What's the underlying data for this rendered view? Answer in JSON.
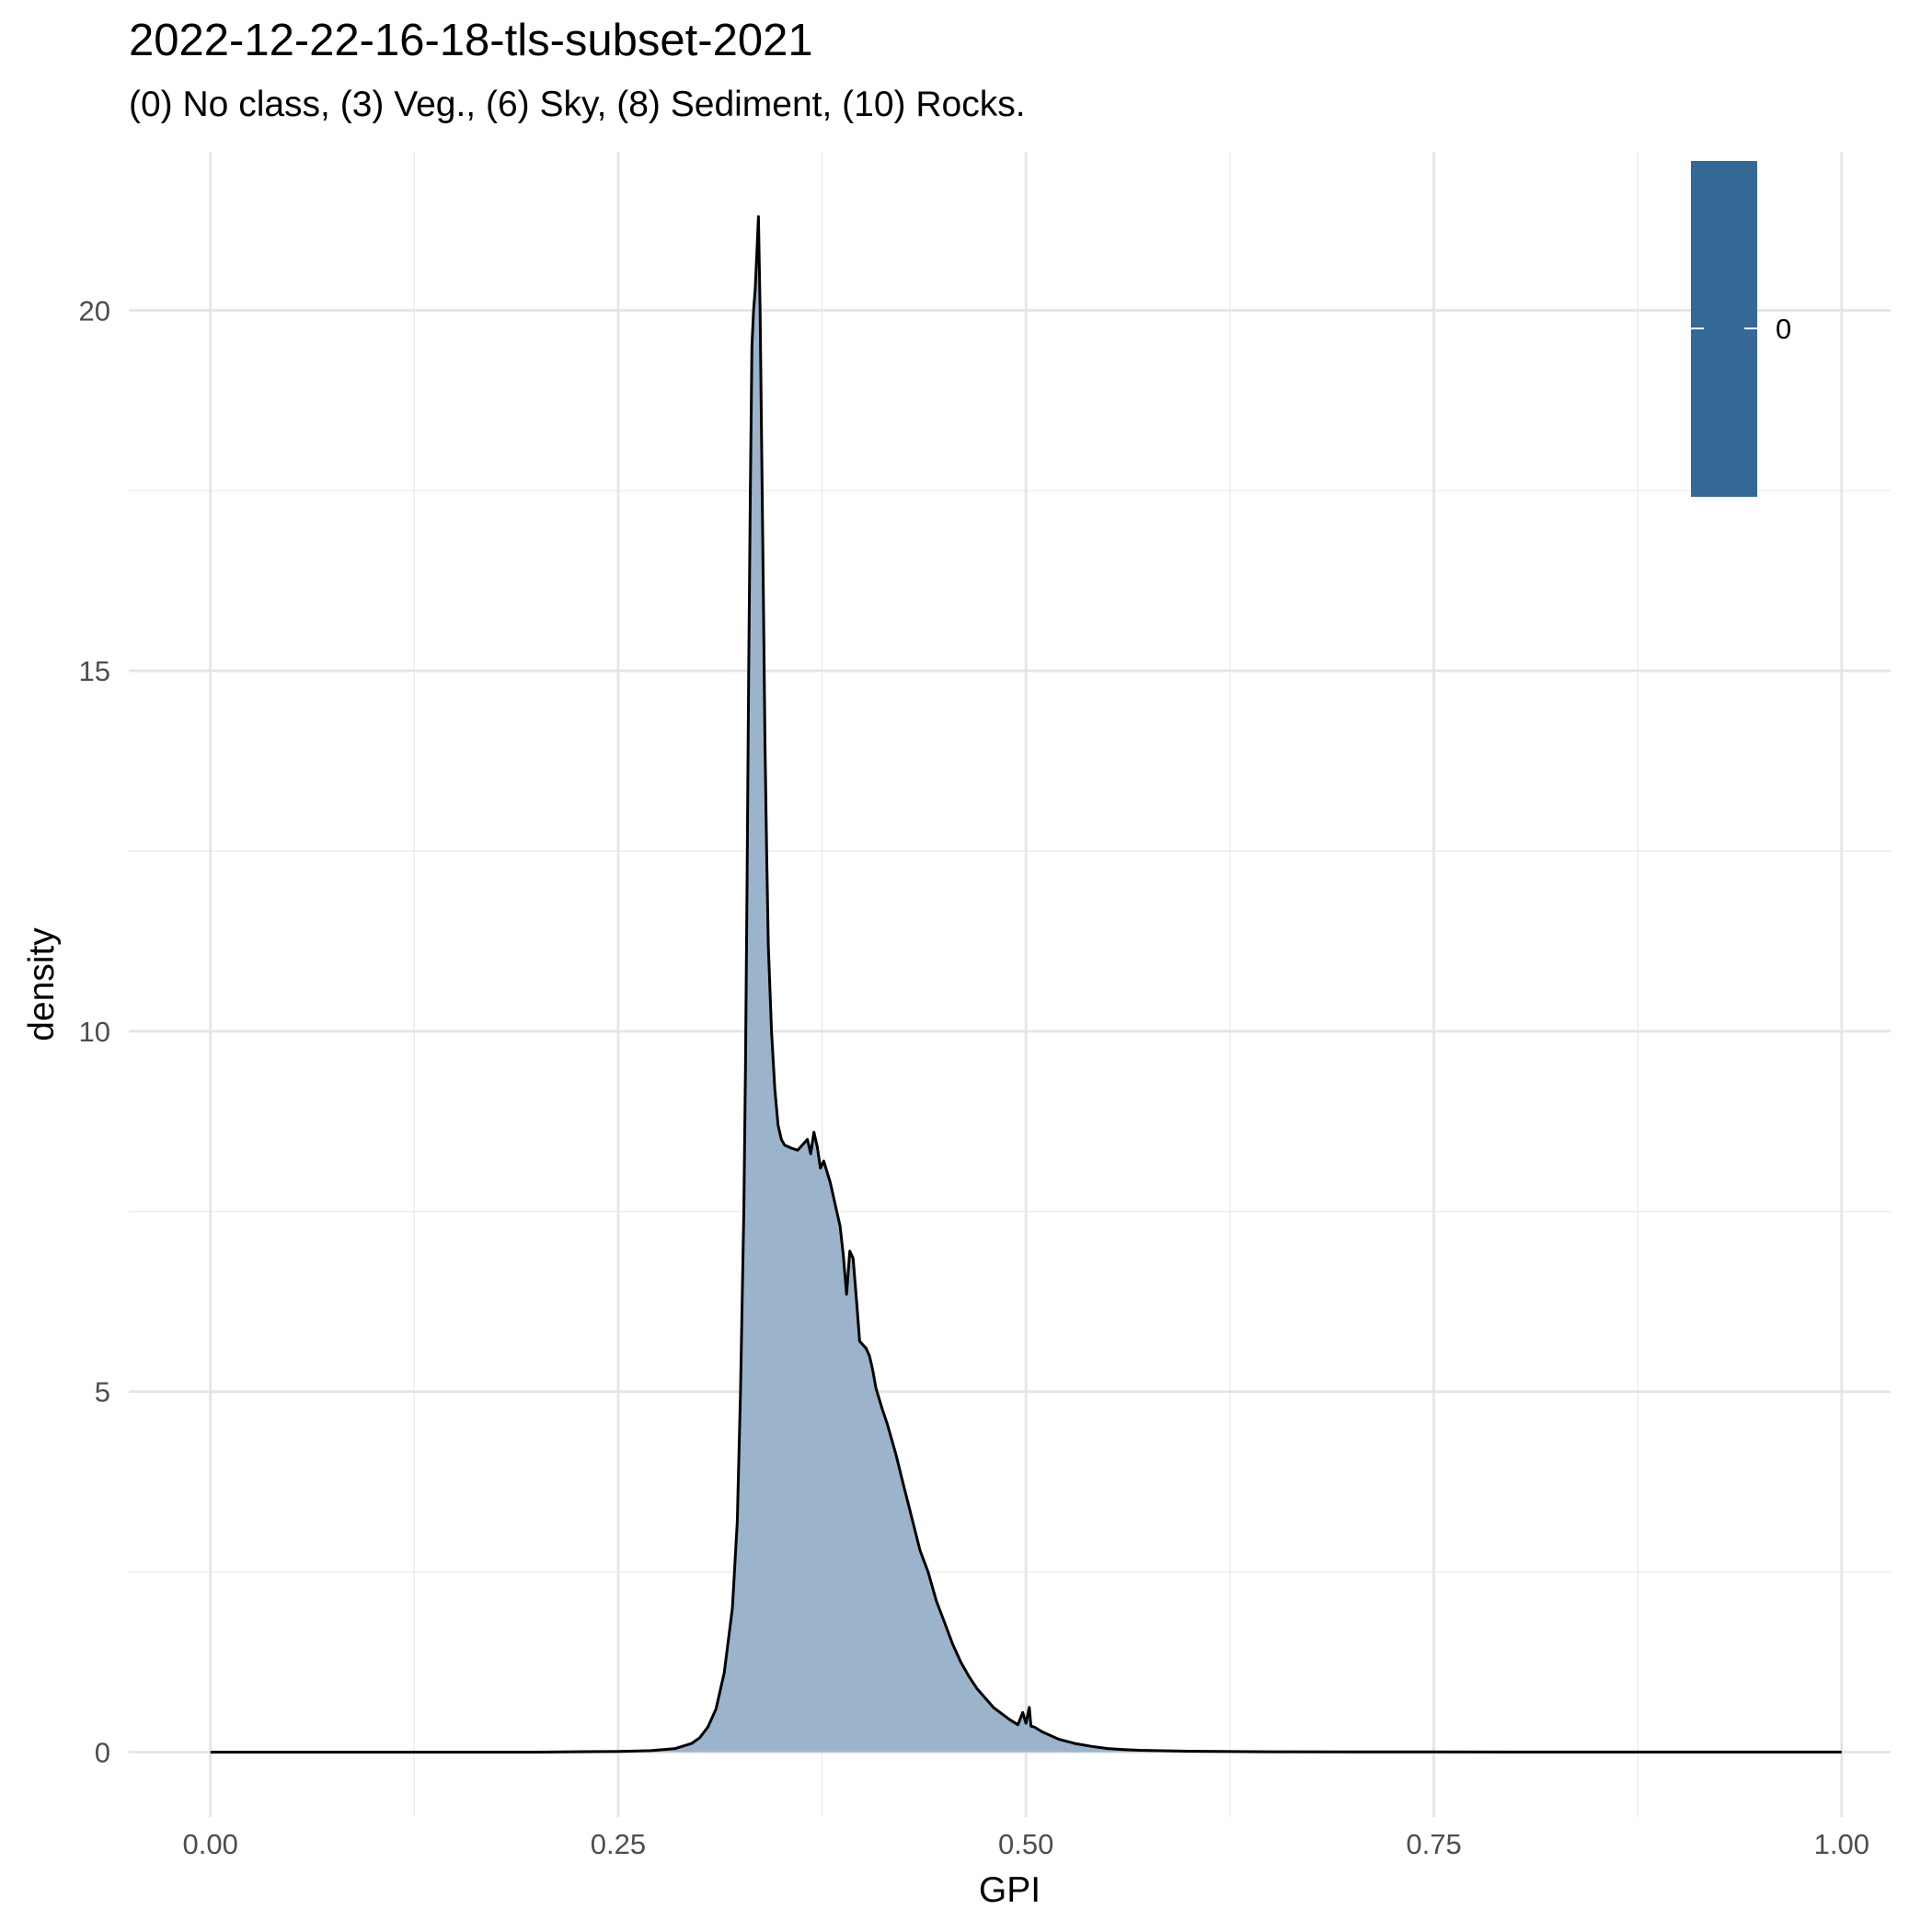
{
  "chart_data": {
    "type": "area",
    "title": "2022-12-22-16-18-tls-subset-2021",
    "subtitle": "(0) No class, (3) Veg., (6) Sky, (8) Sediment, (10) Rocks.",
    "xlabel": "GPI",
    "ylabel": "density",
    "xlim": [
      -0.05,
      1.03
    ],
    "ylim": [
      -0.9,
      22.2
    ],
    "x_ticks": [
      0.0,
      0.25,
      0.5,
      0.75,
      1.0
    ],
    "x_tick_labels": [
      "0.00",
      "0.25",
      "0.50",
      "0.75",
      "1.00"
    ],
    "y_ticks": [
      0,
      5,
      10,
      15,
      20
    ],
    "y_tick_labels": [
      "0",
      "5",
      "10",
      "15",
      "20"
    ],
    "grid": true,
    "fill_color": "#9bb4cb",
    "line_color": "#000000",
    "legend": {
      "placement": "top-right",
      "type": "colorbar",
      "labels": [
        "0"
      ],
      "color": "#346895"
    },
    "series": [
      {
        "x": [
          0.0,
          0.1,
          0.2,
          0.25,
          0.27,
          0.285,
          0.295,
          0.3,
          0.305,
          0.31,
          0.315,
          0.32,
          0.323,
          0.325,
          0.327,
          0.328,
          0.329,
          0.33,
          0.331,
          0.332,
          0.333,
          0.334,
          0.335,
          0.336,
          0.337,
          0.338,
          0.339,
          0.34,
          0.341,
          0.342,
          0.344,
          0.346,
          0.348,
          0.35,
          0.352,
          0.354,
          0.356,
          0.36,
          0.364,
          0.366,
          0.368,
          0.37,
          0.372,
          0.374,
          0.376,
          0.378,
          0.38,
          0.382,
          0.384,
          0.386,
          0.388,
          0.39,
          0.392,
          0.394,
          0.396,
          0.398,
          0.4,
          0.402,
          0.403,
          0.404,
          0.406,
          0.408,
          0.41,
          0.412,
          0.415,
          0.42,
          0.425,
          0.43,
          0.435,
          0.44,
          0.445,
          0.45,
          0.455,
          0.46,
          0.465,
          0.47,
          0.48,
          0.49,
          0.495,
          0.498,
          0.5,
          0.502,
          0.503,
          0.505,
          0.51,
          0.52,
          0.53,
          0.54,
          0.55,
          0.56,
          0.57,
          0.58,
          0.6,
          0.65,
          0.7,
          0.75,
          0.8,
          0.85,
          0.9,
          0.95,
          1.0
        ],
        "values": [
          0,
          0,
          0,
          0.01,
          0.02,
          0.05,
          0.12,
          0.2,
          0.35,
          0.6,
          1.1,
          2.0,
          3.2,
          5.0,
          7.5,
          9.5,
          12.0,
          15.0,
          17.5,
          19.5,
          20.0,
          20.3,
          20.8,
          21.3,
          20.0,
          18.0,
          16.0,
          14.0,
          12.5,
          11.2,
          10.0,
          9.2,
          8.7,
          8.5,
          8.42,
          8.4,
          8.38,
          8.35,
          8.45,
          8.5,
          8.3,
          8.6,
          8.4,
          8.1,
          8.2,
          8.05,
          7.9,
          7.7,
          7.5,
          7.3,
          6.9,
          6.35,
          6.95,
          6.85,
          6.3,
          5.7,
          5.65,
          5.6,
          5.55,
          5.5,
          5.3,
          5.05,
          4.9,
          4.75,
          4.55,
          4.15,
          3.7,
          3.25,
          2.8,
          2.5,
          2.1,
          1.8,
          1.5,
          1.25,
          1.05,
          0.88,
          0.62,
          0.45,
          0.38,
          0.55,
          0.4,
          0.62,
          0.36,
          0.35,
          0.28,
          0.18,
          0.12,
          0.08,
          0.05,
          0.035,
          0.025,
          0.02,
          0.012,
          0.005,
          0.003,
          0.002,
          0.001,
          0.001,
          0.001,
          0.001,
          0.001
        ]
      }
    ]
  }
}
